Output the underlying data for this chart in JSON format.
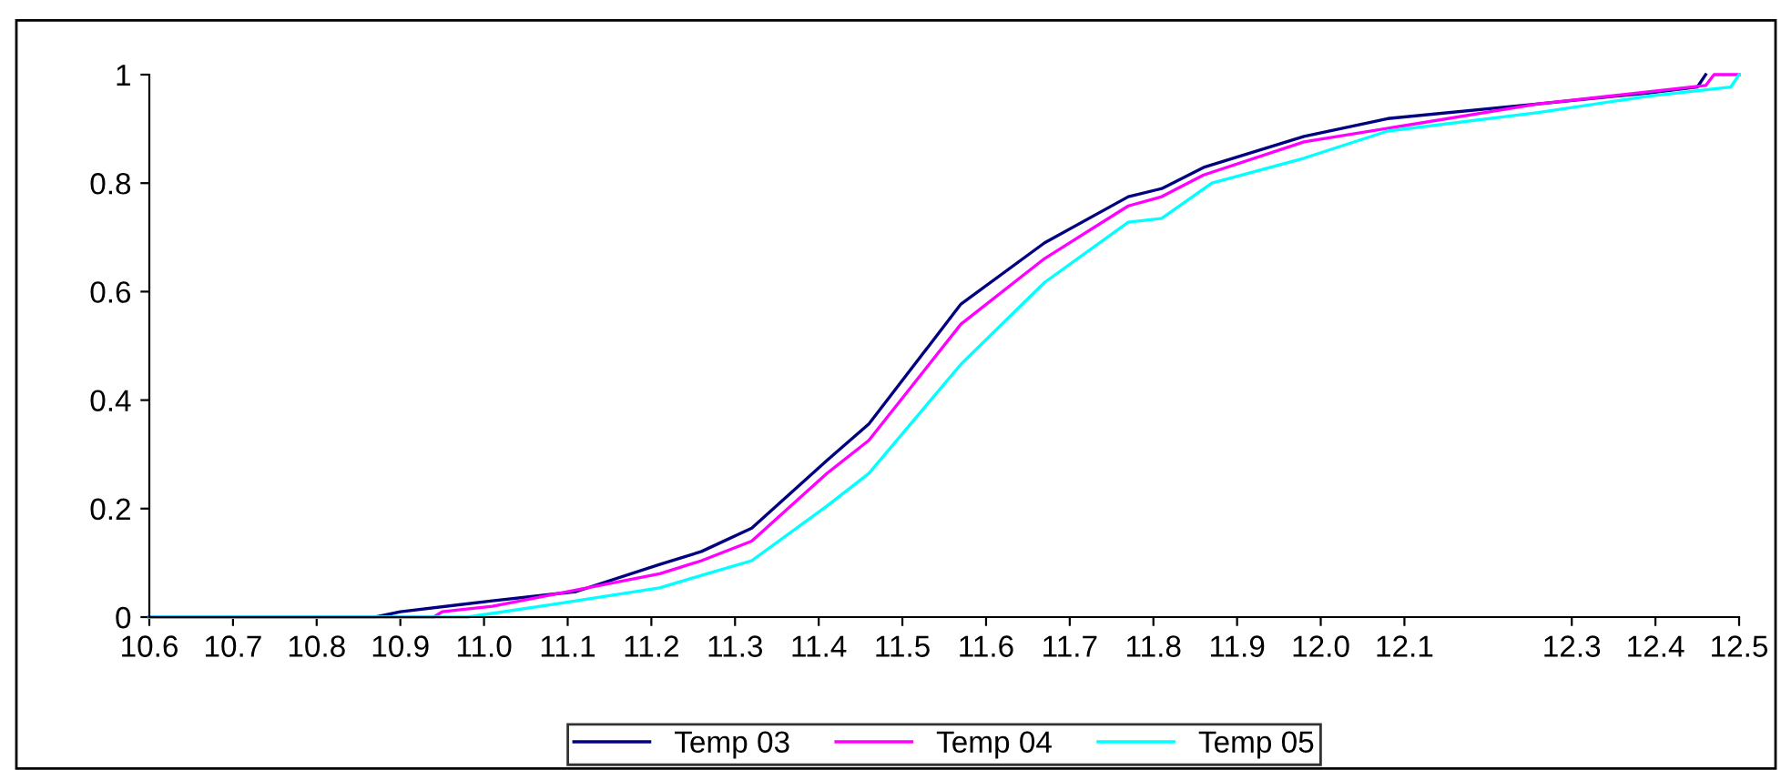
{
  "chart_data": {
    "type": "line",
    "series": [
      {
        "name": "Temp 03",
        "color": "#000080",
        "x": [
          10.6,
          10.87,
          10.9,
          11.01,
          11.11,
          11.21,
          11.26,
          11.32,
          11.41,
          11.46,
          11.57,
          11.67,
          11.77,
          11.81,
          11.86,
          11.98,
          12.08,
          12.26,
          12.39,
          12.45,
          12.46
        ],
        "values": [
          0,
          0,
          0.01,
          0.03,
          0.047,
          0.097,
          0.121,
          0.164,
          0.289,
          0.356,
          0.577,
          0.69,
          0.775,
          0.79,
          0.829,
          0.886,
          0.919,
          0.946,
          0.966,
          0.977,
          1
        ]
      },
      {
        "name": "Temp 04",
        "color": "#ff00ff",
        "x": [
          10.6,
          10.94,
          10.95,
          11.01,
          11.21,
          11.26,
          11.32,
          11.41,
          11.46,
          11.57,
          11.67,
          11.77,
          11.81,
          11.86,
          11.98,
          12.26,
          12.46,
          12.47,
          12.5
        ],
        "values": [
          0,
          0,
          0.01,
          0.02,
          0.08,
          0.104,
          0.14,
          0.265,
          0.326,
          0.54,
          0.661,
          0.758,
          0.775,
          0.815,
          0.876,
          0.946,
          0.98,
          1,
          1
        ]
      },
      {
        "name": "Temp 05",
        "color": "#00ffff",
        "x": [
          10.6,
          10.98,
          11.08,
          11.21,
          11.26,
          11.32,
          11.41,
          11.46,
          11.57,
          11.67,
          11.77,
          11.81,
          11.87,
          11.98,
          12.08,
          12.26,
          12.39,
          12.49,
          12.5
        ],
        "values": [
          0,
          0,
          0.023,
          0.054,
          0.077,
          0.104,
          0.205,
          0.265,
          0.466,
          0.617,
          0.728,
          0.735,
          0.8,
          0.846,
          0.896,
          0.93,
          0.96,
          0.977,
          1
        ]
      }
    ],
    "xlim": [
      10.6,
      12.5
    ],
    "xticks": [
      {
        "value": 10.6,
        "label": "10.6"
      },
      {
        "value": 10.7,
        "label": "10.7"
      },
      {
        "value": 10.8,
        "label": "10.8"
      },
      {
        "value": 10.9,
        "label": "10.9"
      },
      {
        "value": 11.0,
        "label": "11.0"
      },
      {
        "value": 11.1,
        "label": "11.1"
      },
      {
        "value": 11.2,
        "label": "11.2"
      },
      {
        "value": 11.3,
        "label": "11.3"
      },
      {
        "value": 11.4,
        "label": "11.4"
      },
      {
        "value": 11.5,
        "label": "11.5"
      },
      {
        "value": 11.6,
        "label": "11.6"
      },
      {
        "value": 11.7,
        "label": "11.7"
      },
      {
        "value": 11.8,
        "label": "11.8"
      },
      {
        "value": 11.9,
        "label": "11.9"
      },
      {
        "value": 12.0,
        "label": "12.0"
      },
      {
        "value": 12.1,
        "label": "12.1"
      },
      {
        "value": 12.3,
        "label": "12.3"
      },
      {
        "value": 12.4,
        "label": "12.4"
      },
      {
        "value": 12.5,
        "label": "12.5"
      }
    ],
    "ylim": [
      0,
      1
    ],
    "yticks": [
      0,
      0.2,
      0.4,
      0.6,
      0.8,
      1
    ],
    "grid": false,
    "legend": "bottom",
    "marker": "none",
    "line_style": "solid"
  }
}
